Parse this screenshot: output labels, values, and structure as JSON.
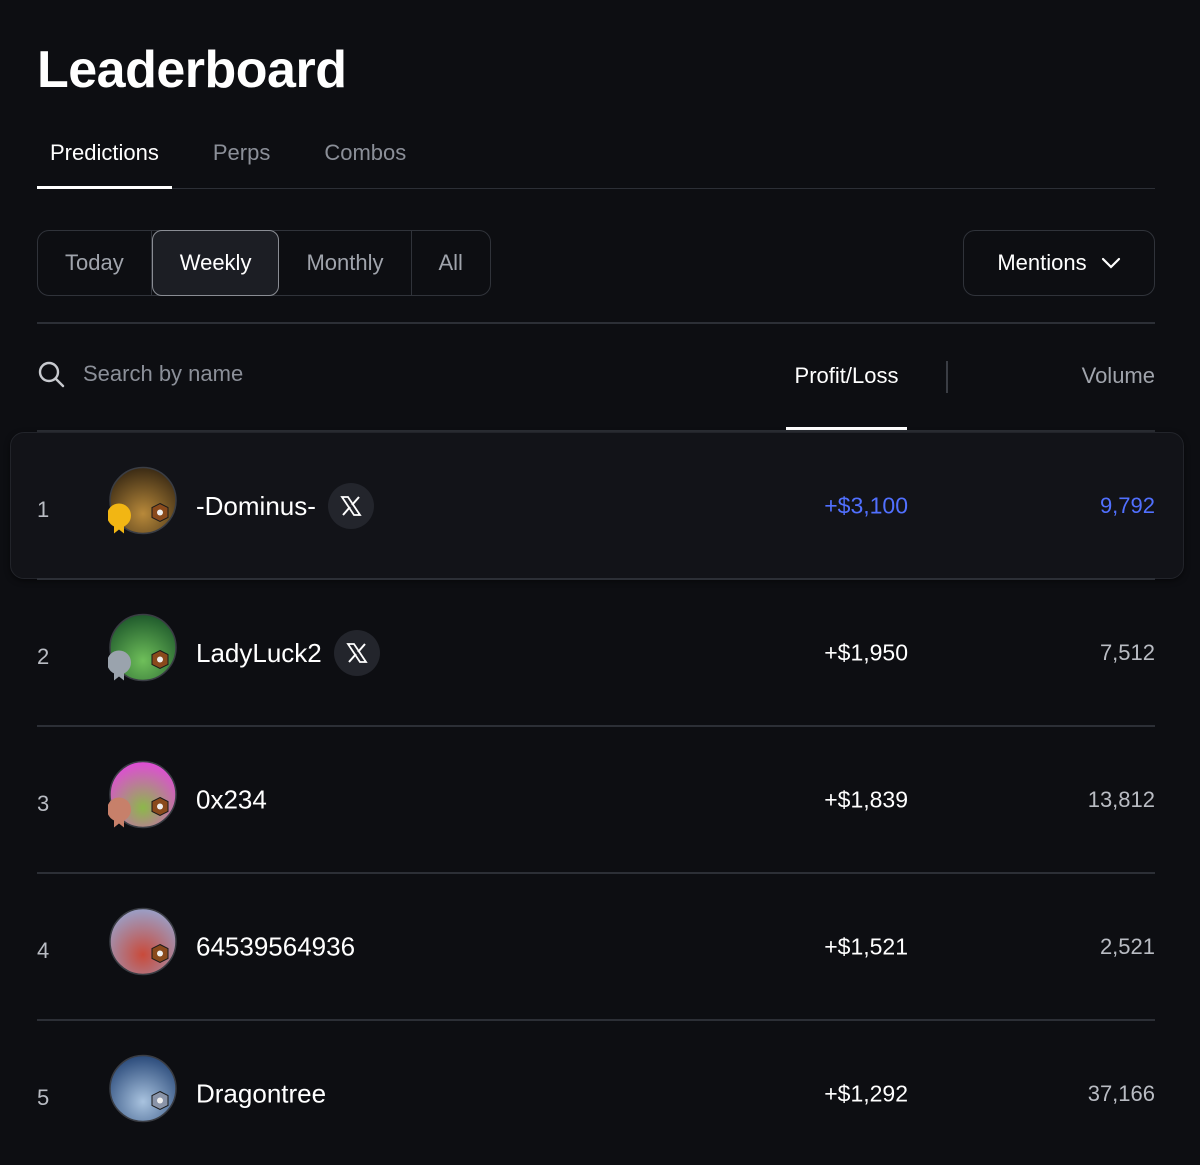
{
  "header": {
    "title": "Leaderboard"
  },
  "tabs": {
    "items": [
      "Predictions",
      "Perps",
      "Combos"
    ],
    "active": 0
  },
  "periods": {
    "items": [
      "Today",
      "Weekly",
      "Monthly",
      "All"
    ],
    "active": 1
  },
  "dropdown": {
    "label": "Mentions"
  },
  "search": {
    "placeholder": "Search by name"
  },
  "columns": {
    "pnl": "Profit/Loss",
    "volume": "Volume"
  },
  "rows": [
    {
      "rank": 1,
      "name": "-Dominus-",
      "x_badge": true,
      "pnl": "+$3,100",
      "volume": "9,792"
    },
    {
      "rank": 2,
      "name": "LadyLuck2",
      "x_badge": true,
      "pnl": "+$1,950",
      "volume": "7,512"
    },
    {
      "rank": 3,
      "name": "0x234",
      "x_badge": false,
      "pnl": "+$1,839",
      "volume": "13,812"
    },
    {
      "rank": 4,
      "name": "64539564936",
      "x_badge": false,
      "pnl": "+$1,521",
      "volume": "2,521"
    },
    {
      "rank": 5,
      "name": "Dragontree",
      "x_badge": false,
      "pnl": "+$1,292",
      "volume": "37,166"
    }
  ]
}
